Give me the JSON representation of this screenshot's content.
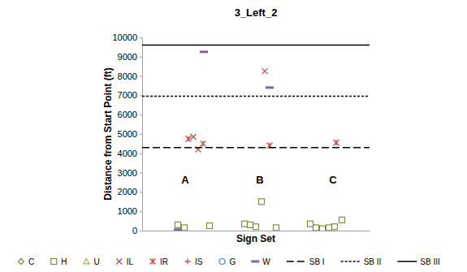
{
  "chart_data": {
    "type": "scatter",
    "title": "3_Left_2",
    "x_label": "Sign Set",
    "y_label": "Distance from Start Point (ft)",
    "xlim": [
      0,
      28
    ],
    "ylim": [
      0,
      10000
    ],
    "yticks": [
      0,
      1000,
      2000,
      3000,
      4000,
      5000,
      6000,
      7000,
      8000,
      9000,
      10000
    ],
    "tick_labels": "y",
    "grid": false,
    "legend": "bottom",
    "annotations": [
      {
        "text": "A",
        "x": 5.3,
        "y": 2600
      },
      {
        "text": "B",
        "x": 14.5,
        "y": 2600
      },
      {
        "text": "C",
        "x": 23.5,
        "y": 2600
      }
    ],
    "series": [
      {
        "name": "C",
        "color": "#77933c",
        "marker": "diamond",
        "x": [],
        "values": []
      },
      {
        "name": "H",
        "color": "#77933c",
        "marker": "square",
        "x": [
          4.4,
          5.2,
          8.3,
          12.6,
          13.3,
          14.0,
          14.7,
          16.5,
          20.7,
          21.4,
          22.2,
          23.0,
          23.7,
          24.6
        ],
        "values": [
          300,
          150,
          250,
          350,
          300,
          200,
          1500,
          150,
          350,
          150,
          100,
          150,
          200,
          550
        ]
      },
      {
        "name": "U",
        "color": "#9bbb59",
        "marker": "triangle",
        "x": [],
        "values": []
      },
      {
        "name": "IL",
        "color": "#c0504d",
        "marker": "x",
        "x": [
          6.3,
          6.9,
          15.1
        ],
        "values": [
          4850,
          4200,
          8250
        ]
      },
      {
        "name": "IR",
        "color": "#c0504d",
        "marker": "asterisk",
        "x": [
          5.7,
          7.5,
          15.7,
          23.9
        ],
        "values": [
          4750,
          4500,
          4400,
          4550
        ]
      },
      {
        "name": "IS",
        "color": "#c0504d",
        "marker": "plus",
        "x": [],
        "values": []
      },
      {
        "name": "G",
        "color": "#4f81bd",
        "marker": "circle",
        "x": [],
        "values": []
      },
      {
        "name": "W",
        "color": "#8064a2",
        "marker": "dash",
        "x": [
          4.4,
          7.6,
          15.7
        ],
        "values": [
          50,
          9250,
          7400
        ]
      },
      {
        "name": "SB I",
        "type": "line",
        "color": "#000000",
        "line_style": "long-dash",
        "x": [
          0,
          28
        ],
        "values": [
          4300,
          4300
        ]
      },
      {
        "name": "SB II",
        "type": "line",
        "color": "#000000",
        "line_style": "short-dash",
        "x": [
          0,
          28
        ],
        "values": [
          6950,
          6950
        ]
      },
      {
        "name": "SB III",
        "type": "line",
        "color": "#000000",
        "line_style": "solid",
        "x": [
          0,
          28
        ],
        "values": [
          9600,
          9600
        ]
      }
    ]
  }
}
